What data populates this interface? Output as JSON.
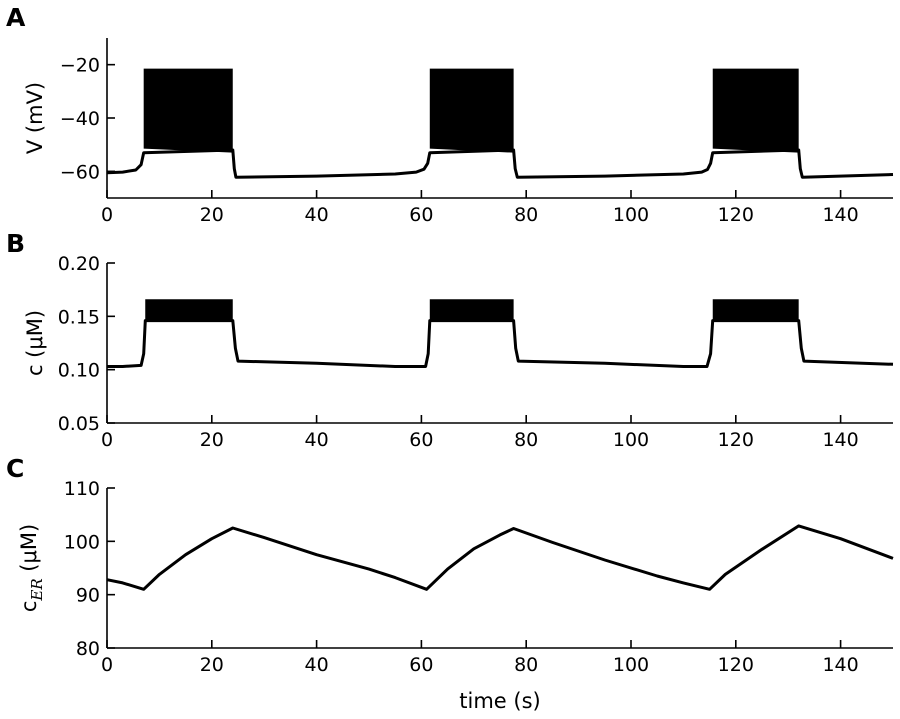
{
  "chart_data": [
    {
      "panel": "A",
      "type": "line",
      "ylabel": "V (mV)",
      "xlabel": "",
      "xlim": [
        0,
        150
      ],
      "ylim": [
        -70,
        -10
      ],
      "xticks": [
        0,
        20,
        40,
        60,
        80,
        100,
        120,
        140
      ],
      "yticks": [
        -60,
        -40,
        -20
      ],
      "ytick_labels": [
        "−60",
        "−40",
        "−20"
      ],
      "series": [
        {
          "x": [
            0,
            3,
            5.5,
            6.5,
            7,
            24,
            24.3,
            24.6,
            40,
            55,
            59,
            60.5,
            61.2,
            61.6,
            77.6,
            77.9,
            78.3,
            95,
            110,
            113.5,
            114.6,
            115.2,
            115.6,
            132,
            132.3,
            132.7,
            150
          ],
          "y": [
            -60.5,
            -60.3,
            -59.5,
            -57.5,
            -53,
            -52,
            -59,
            -62.2,
            -61.8,
            -61,
            -60.3,
            -59.2,
            -57,
            -53,
            -52,
            -59,
            -62.2,
            -61.8,
            -61,
            -60.3,
            -59.3,
            -57,
            -53,
            -52,
            -59,
            -62.2,
            -61.2
          ]
        }
      ],
      "bursts": [
        {
          "start": 7,
          "end": 24,
          "peak": -21.5,
          "trough_start": -51.5,
          "trough_end": -53
        },
        {
          "start": 61.6,
          "end": 77.6,
          "peak": -21.5,
          "trough_start": -51.5,
          "trough_end": -53
        },
        {
          "start": 115.6,
          "end": 132,
          "peak": -21.5,
          "trough_start": -51.5,
          "trough_end": -53
        }
      ]
    },
    {
      "panel": "B",
      "type": "line",
      "ylabel": "c (μM)",
      "xlabel": "",
      "xlim": [
        0,
        150
      ],
      "ylim": [
        0.05,
        0.2
      ],
      "xticks": [
        0,
        20,
        40,
        60,
        80,
        100,
        120,
        140
      ],
      "yticks": [
        0.05,
        0.1,
        0.15,
        0.2
      ],
      "ytick_labels": [
        "0.05",
        "0.10",
        "0.15",
        "0.20"
      ],
      "series": [
        {
          "x": [
            0,
            3,
            6.5,
            7,
            7.3,
            24,
            24.5,
            25,
            40,
            55,
            60.8,
            61.3,
            61.6,
            77.6,
            78,
            78.5,
            95,
            110,
            114.5,
            115.2,
            115.6,
            132,
            132.5,
            133,
            150
          ],
          "y": [
            0.103,
            0.103,
            0.104,
            0.115,
            0.146,
            0.146,
            0.12,
            0.108,
            0.106,
            0.103,
            0.103,
            0.115,
            0.146,
            0.146,
            0.12,
            0.108,
            0.106,
            0.103,
            0.103,
            0.115,
            0.146,
            0.146,
            0.12,
            0.108,
            0.105
          ]
        }
      ],
      "bursts": [
        {
          "start": 7.3,
          "end": 24,
          "peak": 0.166,
          "trough_start": 0.147,
          "trough_end": 0.146
        },
        {
          "start": 61.6,
          "end": 77.6,
          "peak": 0.166,
          "trough_start": 0.147,
          "trough_end": 0.146
        },
        {
          "start": 115.6,
          "end": 132,
          "peak": 0.166,
          "trough_start": 0.147,
          "trough_end": 0.146
        }
      ]
    },
    {
      "panel": "C",
      "type": "line",
      "ylabel": "c_ER (μM)",
      "xlabel": "time (s)",
      "xlim": [
        0,
        150
      ],
      "ylim": [
        80,
        110
      ],
      "xticks": [
        0,
        20,
        40,
        60,
        80,
        100,
        120,
        140
      ],
      "yticks": [
        80,
        90,
        100,
        110
      ],
      "ytick_labels": [
        "80",
        "90",
        "100",
        "110"
      ],
      "series": [
        {
          "x": [
            0,
            3,
            7,
            10,
            15,
            20,
            24,
            30,
            40,
            50,
            55,
            61,
            65,
            70,
            75,
            77.6,
            85,
            95,
            105,
            110,
            115,
            118,
            125,
            132,
            140,
            150
          ],
          "y": [
            92.8,
            92.2,
            91.0,
            93.8,
            97.5,
            100.5,
            102.5,
            100.7,
            97.5,
            94.8,
            93.2,
            91.0,
            94.8,
            98.6,
            101.2,
            102.4,
            99.8,
            96.5,
            93.5,
            92.2,
            91.0,
            93.8,
            98.5,
            102.9,
            100.5,
            96.8
          ]
        }
      ]
    }
  ]
}
